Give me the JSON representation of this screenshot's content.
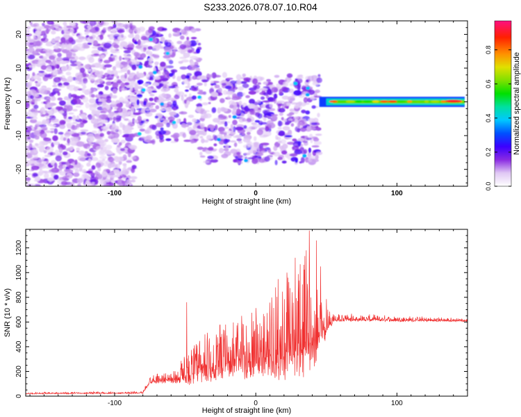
{
  "title": "S233.2026.078.07.10.R04",
  "chart_data": [
    {
      "type": "heatmap",
      "name": "spectrogram",
      "xlabel": "Height of straight line (km)",
      "ylabel": "Frequency (Hz)",
      "xlim": [
        -163,
        150
      ],
      "ylim": [
        -25,
        24
      ],
      "xticks": [
        -100,
        0,
        100
      ],
      "yticks": [
        -20,
        -10,
        0,
        10,
        20
      ],
      "colorbar": {
        "label": "Normalized spectral amplitude",
        "range": [
          0,
          0.97
        ],
        "ticks": [
          "0.0",
          "0.2",
          "0.4",
          "0.6",
          "0.8"
        ]
      },
      "regions": [
        {
          "desc": "noise",
          "x": [
            -163,
            -85
          ],
          "f": [
            -25,
            24
          ],
          "amp": 0.15
        },
        {
          "desc": "scatter",
          "x": [
            -85,
            -40
          ],
          "f": [
            -12,
            22
          ],
          "amp": 0.25
        },
        {
          "desc": "scatter",
          "x": [
            -40,
            45
          ],
          "f": [
            -18,
            8
          ],
          "amp": 0.25
        },
        {
          "desc": "carrier",
          "x": [
            45,
            148
          ],
          "f": [
            -1,
            1
          ],
          "amp": 0.6
        }
      ]
    },
    {
      "type": "line",
      "name": "snr",
      "xlabel": "Height of straight line (km)",
      "ylabel": "SNR (10 * v/v)",
      "xlim": [
        -163,
        150
      ],
      "ylim": [
        0,
        1350
      ],
      "xticks": [
        -100,
        0,
        100
      ],
      "yticks": [
        0,
        200,
        400,
        600,
        800,
        1000,
        1200
      ],
      "color": "#f03030",
      "envelope": [
        {
          "x": -163,
          "base": 20,
          "spread": 10
        },
        {
          "x": -80,
          "base": 25,
          "spread": 15
        },
        {
          "x": -75,
          "base": 120,
          "spread": 60
        },
        {
          "x": -60,
          "base": 130,
          "spread": 70
        },
        {
          "x": -50,
          "base": 150,
          "spread": 200
        },
        {
          "x": -40,
          "base": 200,
          "spread": 300
        },
        {
          "x": -20,
          "base": 250,
          "spread": 350
        },
        {
          "x": 0,
          "base": 300,
          "spread": 450
        },
        {
          "x": 20,
          "base": 330,
          "spread": 600
        },
        {
          "x": 38,
          "base": 400,
          "spread": 800
        },
        {
          "x": 45,
          "base": 500,
          "spread": 500
        },
        {
          "x": 55,
          "base": 620,
          "spread": 50
        },
        {
          "x": 150,
          "base": 610,
          "spread": 20
        }
      ],
      "spikes": [
        {
          "x": -49,
          "y": 760
        },
        {
          "x": -36,
          "y": 500
        },
        {
          "x": -10,
          "y": 650
        },
        {
          "x": 14,
          "y": 880
        },
        {
          "x": 22,
          "y": 1000
        },
        {
          "x": 28,
          "y": 1120
        },
        {
          "x": 38,
          "y": 1340
        },
        {
          "x": 43,
          "y": 1260
        },
        {
          "x": 46,
          "y": 1050
        }
      ]
    }
  ]
}
